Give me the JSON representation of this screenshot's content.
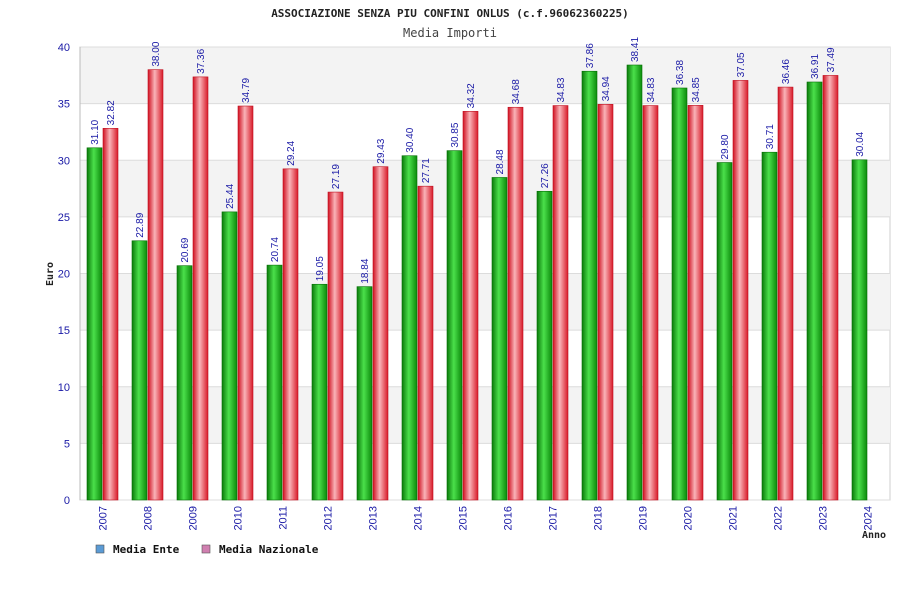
{
  "chart_data": {
    "type": "bar",
    "title": "ASSOCIAZIONE SENZA PIU CONFINI ONLUS (c.f.96062360225)",
    "subtitle": "Media Importi",
    "xlabel": "Anno",
    "ylabel": "Euro",
    "ylim": [
      0,
      40
    ],
    "yticks": [
      0,
      5,
      10,
      15,
      20,
      25,
      30,
      35,
      40
    ],
    "grid": true,
    "legend_position": "bottom-left",
    "categories": [
      "2007",
      "2008",
      "2009",
      "2010",
      "2011",
      "2012",
      "2013",
      "2014",
      "2015",
      "2016",
      "2017",
      "2018",
      "2019",
      "2020",
      "2021",
      "2022",
      "2023",
      "2024"
    ],
    "series": [
      {
        "name": "Media Ente",
        "color": "#1faa1f",
        "legend_color": "#5b9bd5",
        "values": [
          31.1,
          22.89,
          20.69,
          25.44,
          20.74,
          19.05,
          18.84,
          30.4,
          30.85,
          28.48,
          27.26,
          37.86,
          38.41,
          36.38,
          29.8,
          30.71,
          36.91,
          30.04
        ],
        "labels": [
          "31.10",
          "22.89",
          "20.69",
          "25.44",
          "20.74",
          "19.05",
          "18.84",
          "30.40",
          "30.85",
          "28.48",
          "27.26",
          "37.86",
          "38.41",
          "36.38",
          "29.80",
          "30.71",
          "36.91",
          "30.04"
        ]
      },
      {
        "name": "Media Nazionale",
        "color": "#e8303a",
        "legend_color": "#d07fb0",
        "values": [
          32.82,
          38.0,
          37.36,
          34.79,
          29.24,
          27.19,
          29.43,
          27.71,
          34.32,
          34.68,
          34.83,
          34.94,
          34.83,
          34.85,
          37.05,
          36.46,
          37.49,
          null
        ],
        "labels": [
          "32.82",
          "38.00",
          "37.36",
          "34.79",
          "29.24",
          "27.19",
          "29.43",
          "27.71",
          "34.32",
          "34.68",
          "34.83",
          "34.94",
          "34.83",
          "34.85",
          "37.05",
          "36.46",
          "37.49",
          null
        ]
      }
    ]
  }
}
